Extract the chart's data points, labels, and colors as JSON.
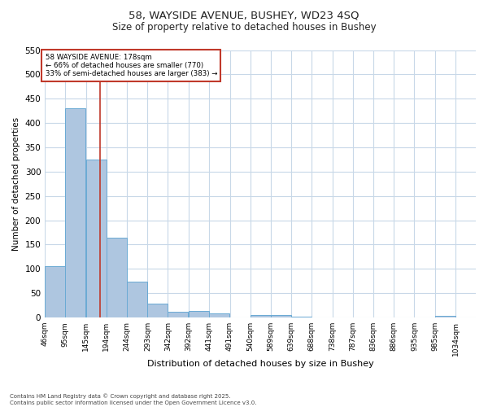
{
  "title_line1": "58, WAYSIDE AVENUE, BUSHEY, WD23 4SQ",
  "title_line2": "Size of property relative to detached houses in Bushey",
  "xlabel": "Distribution of detached houses by size in Bushey",
  "ylabel": "Number of detached properties",
  "bar_color": "#aec6e0",
  "bar_edge_color": "#6aaad4",
  "bin_labels": [
    "46sqm",
    "95sqm",
    "145sqm",
    "194sqm",
    "244sqm",
    "293sqm",
    "342sqm",
    "392sqm",
    "441sqm",
    "491sqm",
    "540sqm",
    "589sqm",
    "639sqm",
    "688sqm",
    "738sqm",
    "787sqm",
    "836sqm",
    "886sqm",
    "935sqm",
    "985sqm",
    "1034sqm"
  ],
  "bar_values": [
    105,
    430,
    325,
    165,
    73,
    28,
    12,
    13,
    9,
    0,
    5,
    5,
    2,
    0,
    0,
    0,
    0,
    0,
    0,
    3,
    0
  ],
  "bin_edges": [
    46,
    95,
    145,
    194,
    244,
    293,
    342,
    392,
    441,
    491,
    540,
    589,
    639,
    688,
    738,
    787,
    836,
    886,
    935,
    985,
    1034
  ],
  "property_size": 178,
  "vline_color": "#c0392b",
  "annotation_text_line1": "58 WAYSIDE AVENUE: 178sqm",
  "annotation_text_line2": "← 66% of detached houses are smaller (770)",
  "annotation_text_line3": "33% of semi-detached houses are larger (383) →",
  "annotation_box_color": "#c0392b",
  "ylim": [
    0,
    550
  ],
  "grid_color": "#c8d8e8",
  "background_color": "#ffffff",
  "footer_line1": "Contains HM Land Registry data © Crown copyright and database right 2025.",
  "footer_line2": "Contains public sector information licensed under the Open Government Licence v3.0."
}
